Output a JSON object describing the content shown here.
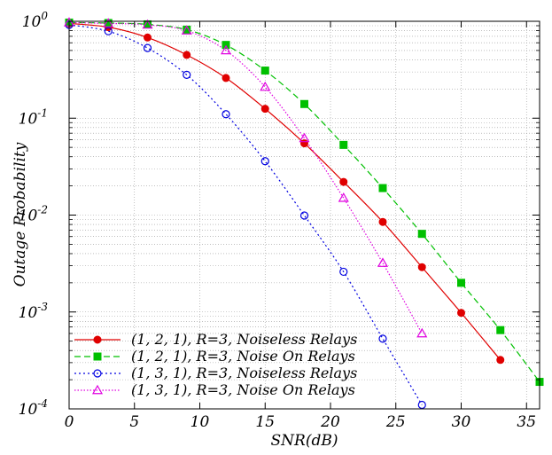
{
  "chart_data": {
    "type": "line",
    "title": "",
    "xlabel": "SNR(dB)",
    "ylabel": "Outage Probability",
    "xlim": [
      0,
      36
    ],
    "ylim": [
      0.0001,
      1
    ],
    "yscale": "log",
    "grid": true,
    "legend_position": "bottom-left",
    "x_ticks": [
      "0",
      "5",
      "10",
      "15",
      "20",
      "25",
      "30",
      "35"
    ],
    "y_ticks": [
      {
        "base": "10",
        "exp": "0"
      },
      {
        "base": "10",
        "exp": "-1"
      },
      {
        "base": "10",
        "exp": "-2"
      },
      {
        "base": "10",
        "exp": "-3"
      },
      {
        "base": "10",
        "exp": "-4"
      }
    ],
    "series": [
      {
        "name": "(1, 2, 1), R=3, Noiseless Relays",
        "color": "#e00000",
        "line": "solid",
        "marker": "filled-circle",
        "x": [
          0,
          3,
          6,
          9,
          12,
          15,
          18,
          21,
          24,
          27,
          30,
          33
        ],
        "y": [
          0.95,
          0.87,
          0.68,
          0.45,
          0.26,
          0.125,
          0.055,
          0.022,
          0.0085,
          0.0029,
          0.00098,
          0.00032
        ]
      },
      {
        "name": "(1, 2, 1), R=3, Noise On Relays",
        "color": "#00c000",
        "line": "dashed",
        "marker": "filled-square",
        "x": [
          0,
          3,
          6,
          9,
          12,
          15,
          18,
          21,
          24,
          27,
          30,
          33,
          36
        ],
        "y": [
          0.97,
          0.96,
          0.93,
          0.82,
          0.57,
          0.31,
          0.14,
          0.053,
          0.019,
          0.0064,
          0.002,
          0.00065,
          0.00019
        ]
      },
      {
        "name": "(1, 3, 1), R=3, Noiseless Relays",
        "color": "#0000e0",
        "line": "dotted",
        "marker": "open-circle",
        "x": [
          0,
          3,
          6,
          9,
          12,
          15,
          18,
          21,
          24,
          27
        ],
        "y": [
          0.92,
          0.79,
          0.53,
          0.28,
          0.11,
          0.036,
          0.0099,
          0.0026,
          0.00053,
          0.00011
        ]
      },
      {
        "name": "(1, 3, 1), R=3, Noise On Relays",
        "color": "#e000e0",
        "line": "dotted",
        "marker": "open-triangle",
        "x": [
          0,
          3,
          6,
          9,
          12,
          15,
          18,
          21,
          24,
          27
        ],
        "y": [
          0.97,
          0.95,
          0.92,
          0.8,
          0.5,
          0.21,
          0.062,
          0.015,
          0.0032,
          0.0006
        ]
      }
    ]
  }
}
